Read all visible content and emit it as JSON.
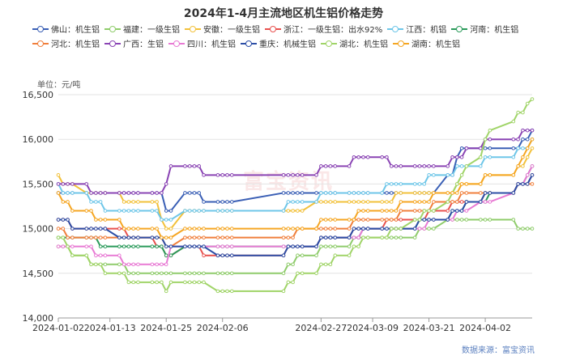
{
  "title": "2024年1-4月主流地区机生铝价格走势",
  "unit": "单位：元/吨",
  "source": "数据来源：富宝资讯",
  "watermark": "富宝资讯",
  "chart_data": {
    "type": "line",
    "title": "2024年1-4月主流地区机生铝价格走势",
    "ylabel": "单位：元/吨",
    "ylim": [
      14000,
      16500
    ],
    "yticks": [
      14000,
      14500,
      15000,
      15500,
      16000,
      16500
    ],
    "ytick_labels": [
      "14,000",
      "14,500",
      "15,000",
      "15,500",
      "16,000",
      "16,500"
    ],
    "xlim": [
      "2024-01-02",
      "2024-04-12"
    ],
    "xticks": [
      "2024-01-02",
      "2024-01-13",
      "2024-01-25",
      "2024-02-06",
      "2024-02-27",
      "2024-03-09",
      "2024-03-21",
      "2024-04-02"
    ],
    "grid": "horizontal",
    "legend_position": "top",
    "x": [
      "2024-01-02",
      "2024-01-03",
      "2024-01-04",
      "2024-01-05",
      "2024-01-08",
      "2024-01-09",
      "2024-01-10",
      "2024-01-11",
      "2024-01-12",
      "2024-01-15",
      "2024-01-16",
      "2024-01-17",
      "2024-01-18",
      "2024-01-19",
      "2024-01-22",
      "2024-01-23",
      "2024-01-24",
      "2024-01-25",
      "2024-01-26",
      "2024-01-29",
      "2024-01-30",
      "2024-01-31",
      "2024-02-01",
      "2024-02-02",
      "2024-02-05",
      "2024-02-06",
      "2024-02-07",
      "2024-02-08",
      "2024-02-19",
      "2024-02-20",
      "2024-02-21",
      "2024-02-22",
      "2024-02-23",
      "2024-02-26",
      "2024-02-27",
      "2024-02-28",
      "2024-02-29",
      "2024-03-01",
      "2024-03-04",
      "2024-03-05",
      "2024-03-06",
      "2024-03-07",
      "2024-03-08",
      "2024-03-11",
      "2024-03-12",
      "2024-03-13",
      "2024-03-14",
      "2024-03-15",
      "2024-03-18",
      "2024-03-19",
      "2024-03-20",
      "2024-03-21",
      "2024-03-22",
      "2024-03-25",
      "2024-03-26",
      "2024-03-27",
      "2024-03-28",
      "2024-03-29",
      "2024-04-01",
      "2024-04-02",
      "2024-04-03",
      "2024-04-08",
      "2024-04-09",
      "2024-04-10",
      "2024-04-11",
      "2024-04-12"
    ],
    "series": [
      {
        "name": "佛山：机生铝",
        "color": "#3a5fb5",
        "values": [
          15400,
          15400,
          15400,
          15400,
          15400,
          15400,
          15400,
          15400,
          15400,
          15400,
          15400,
          15400,
          15400,
          15400,
          15400,
          15400,
          15400,
          15200,
          15200,
          15400,
          15400,
          15400,
          15400,
          15300,
          15300,
          15300,
          15300,
          15300,
          15400,
          15400,
          15400,
          15400,
          15400,
          15400,
          15400,
          15400,
          15400,
          15400,
          15400,
          15400,
          15400,
          15400,
          15400,
          15400,
          15400,
          15400,
          15400,
          15400,
          15400,
          15400,
          15400,
          15400,
          15400,
          15600,
          15600,
          15800,
          15900,
          15900,
          15900,
          15900,
          15900,
          15900,
          15900,
          16000,
          16000,
          16100
        ]
      },
      {
        "name": "福建：一级生铝",
        "color": "#8fcc6b",
        "values": [
          14800,
          14800,
          14800,
          14700,
          14700,
          14600,
          14600,
          14600,
          14600,
          14600,
          14600,
          14500,
          14500,
          14500,
          14500,
          14500,
          14500,
          14500,
          14500,
          14500,
          14500,
          14500,
          14500,
          14500,
          14500,
          14500,
          14500,
          14500,
          14500,
          14600,
          14600,
          14700,
          14700,
          14700,
          14800,
          14800,
          14800,
          14800,
          14800,
          14900,
          14900,
          14900,
          14900,
          14900,
          14900,
          14900,
          14900,
          14900,
          14900,
          15000,
          15000,
          15000,
          15000,
          15100,
          15100,
          15100,
          15100,
          15100,
          15100,
          15100,
          15100,
          15100,
          15000,
          15000,
          15000,
          15000
        ]
      },
      {
        "name": "安徽：一级生铝",
        "color": "#f2c13b",
        "values": [
          15600,
          15500,
          15500,
          15500,
          15400,
          15400,
          15400,
          15400,
          15400,
          15400,
          15300,
          15300,
          15300,
          15300,
          15300,
          15300,
          15100,
          15000,
          15000,
          15200,
          15200,
          15200,
          15200,
          15200,
          15200,
          15200,
          15200,
          15200,
          15200,
          15200,
          15200,
          15200,
          15200,
          15300,
          15300,
          15300,
          15300,
          15300,
          15300,
          15300,
          15300,
          15300,
          15300,
          15300,
          15300,
          15300,
          15400,
          15400,
          15400,
          15400,
          15400,
          15400,
          15400,
          15400,
          15400,
          15500,
          15500,
          15500,
          15500,
          15600,
          15600,
          15600,
          15700,
          15700,
          15800,
          15900
        ]
      },
      {
        "name": "浙江：一级生铝：出水92%",
        "color": "#e8524f",
        "values": [
          15100,
          15100,
          15100,
          15000,
          15000,
          15000,
          15000,
          15000,
          15000,
          15000,
          15000,
          14900,
          14900,
          14900,
          14900,
          14800,
          14800,
          14700,
          14700,
          14800,
          14800,
          14800,
          14800,
          14700,
          14700,
          14700,
          14700,
          14700,
          14700,
          14800,
          14800,
          14800,
          14800,
          14800,
          14900,
          14900,
          14900,
          14900,
          14900,
          15000,
          15000,
          15000,
          15000,
          15000,
          15100,
          15100,
          15100,
          15100,
          15100,
          15100,
          15100,
          15200,
          15200,
          15200,
          15300,
          15300,
          15300,
          15300,
          15300,
          15400,
          15400,
          15400,
          15500,
          15500,
          15500,
          15600
        ]
      },
      {
        "name": "江西：机铝",
        "color": "#6ec6e8",
        "values": [
          15500,
          15400,
          15400,
          15400,
          15400,
          15300,
          15300,
          15300,
          15200,
          15200,
          15200,
          15200,
          15200,
          15200,
          15200,
          15200,
          15100,
          15100,
          15100,
          15200,
          15200,
          15200,
          15200,
          15200,
          15200,
          15200,
          15200,
          15200,
          15200,
          15300,
          15300,
          15300,
          15300,
          15300,
          15400,
          15400,
          15400,
          15400,
          15400,
          15400,
          15400,
          15400,
          15400,
          15400,
          15500,
          15500,
          15500,
          15500,
          15500,
          15500,
          15500,
          15600,
          15600,
          15600,
          15600,
          15700,
          15700,
          15700,
          15700,
          15800,
          15800,
          15800,
          15900,
          15900,
          15900,
          16000
        ]
      },
      {
        "name": "河南：机生铝",
        "color": "#2a9a5a",
        "values": [
          14900,
          14900,
          14900,
          14900,
          14900,
          14900,
          14900,
          14800,
          14800,
          14800,
          14800,
          14800,
          14800,
          14800,
          14800,
          14800,
          14800,
          14700,
          14700,
          14800,
          14800,
          14800,
          14800,
          14800,
          14800,
          14800,
          14800,
          14800,
          14800,
          14800,
          14800,
          14800,
          14800,
          14800,
          14900,
          14900,
          14900,
          14900,
          14900,
          14900,
          14900,
          15000,
          15000,
          15000,
          15000,
          15000,
          15000,
          15000,
          15000,
          15100,
          15100,
          15100,
          15100,
          15100,
          15200,
          15200,
          15200,
          15300,
          15300,
          15300,
          15400,
          15400,
          15500,
          15500,
          15600,
          15700
        ]
      },
      {
        "name": "河北：机生铝",
        "color": "#f07f3c",
        "values": [
          15000,
          15000,
          14900,
          14900,
          14900,
          14900,
          14900,
          14900,
          14900,
          14900,
          14900,
          14900,
          14900,
          14900,
          14900,
          14900,
          14900,
          14800,
          14800,
          14900,
          14900,
          14900,
          14900,
          14900,
          14900,
          14900,
          14900,
          14900,
          14900,
          14900,
          14900,
          15000,
          15000,
          15000,
          15000,
          15000,
          15000,
          15000,
          15000,
          15100,
          15100,
          15100,
          15100,
          15100,
          15100,
          15100,
          15100,
          15200,
          15200,
          15200,
          15200,
          15200,
          15300,
          15300,
          15300,
          15300,
          15400,
          15400,
          15400,
          15400,
          15400,
          15400,
          15500,
          15500,
          15500,
          15500
        ]
      },
      {
        "name": "广西：生铝",
        "color": "#8a44b4",
        "values": [
          15500,
          15500,
          15500,
          15500,
          15500,
          15400,
          15400,
          15400,
          15400,
          15400,
          15400,
          15400,
          15400,
          15400,
          15400,
          15400,
          15400,
          15500,
          15700,
          15700,
          15700,
          15700,
          15700,
          15600,
          15600,
          15600,
          15600,
          15600,
          15600,
          15600,
          15600,
          15600,
          15600,
          15600,
          15700,
          15700,
          15700,
          15700,
          15700,
          15800,
          15800,
          15800,
          15800,
          15800,
          15800,
          15700,
          15700,
          15700,
          15700,
          15700,
          15700,
          15700,
          15700,
          15700,
          15800,
          15800,
          15800,
          15900,
          15900,
          16000,
          16000,
          16000,
          16000,
          16100,
          16100,
          16100
        ]
      },
      {
        "name": "四川：机生铝",
        "color": "#e87ad4",
        "values": [
          14800,
          14800,
          14800,
          14800,
          14800,
          14800,
          14700,
          14700,
          14700,
          14700,
          14600,
          14600,
          14600,
          14600,
          14600,
          14600,
          14600,
          14600,
          14800,
          14800,
          14800,
          14800,
          14800,
          14800,
          14800,
          14800,
          14800,
          14800,
          14800,
          14800,
          14800,
          14800,
          14800,
          14800,
          14900,
          14900,
          14900,
          14900,
          14900,
          14900,
          14900,
          15000,
          15000,
          15000,
          15000,
          15000,
          15000,
          15000,
          15000,
          15000,
          15000,
          15100,
          15100,
          15100,
          15100,
          15200,
          15200,
          15200,
          15300,
          15300,
          15300,
          15400,
          15500,
          15500,
          15600,
          15700
        ]
      },
      {
        "name": "重庆：机械生铝",
        "color": "#2c4ea6",
        "values": [
          15100,
          15100,
          15100,
          15000,
          15000,
          15000,
          15000,
          15000,
          15000,
          14900,
          14900,
          14900,
          14900,
          14900,
          14900,
          14900,
          14900,
          14800,
          14800,
          14800,
          14800,
          14800,
          14800,
          14800,
          14700,
          14700,
          14700,
          14700,
          14700,
          14800,
          14800,
          14800,
          14800,
          14800,
          14900,
          14900,
          14900,
          14900,
          14900,
          15000,
          15000,
          15000,
          15000,
          15000,
          15000,
          15000,
          15000,
          15000,
          15000,
          15100,
          15100,
          15100,
          15100,
          15100,
          15200,
          15200,
          15200,
          15300,
          15300,
          15400,
          15400,
          15400,
          15500,
          15500,
          15500,
          15600
        ]
      },
      {
        "name": "湖北：机生铝",
        "color": "#a0d468",
        "values": [
          14900,
          14900,
          14800,
          14700,
          14700,
          14600,
          14600,
          14600,
          14500,
          14500,
          14500,
          14400,
          14400,
          14400,
          14400,
          14400,
          14400,
          14300,
          14400,
          14400,
          14400,
          14400,
          14400,
          14400,
          14300,
          14300,
          14300,
          14300,
          14300,
          14400,
          14400,
          14500,
          14500,
          14500,
          14600,
          14600,
          14600,
          14700,
          14700,
          14800,
          14800,
          14900,
          14900,
          14900,
          14900,
          15000,
          15000,
          15000,
          15100,
          15100,
          15200,
          15200,
          15200,
          15300,
          15400,
          15500,
          15600,
          15700,
          15800,
          16000,
          16100,
          16200,
          16300,
          16300,
          16400,
          16450
        ]
      },
      {
        "name": "湖南：机生铝",
        "color": "#f5a623",
        "values": [
          15400,
          15300,
          15300,
          15200,
          15200,
          15200,
          15100,
          15100,
          15100,
          15100,
          15000,
          15000,
          15000,
          15000,
          15000,
          15000,
          14900,
          14900,
          14900,
          15000,
          15000,
          15000,
          15000,
          15000,
          15000,
          15000,
          15000,
          15000,
          15000,
          15000,
          15000,
          15000,
          15000,
          15000,
          15100,
          15100,
          15100,
          15100,
          15100,
          15100,
          15200,
          15200,
          15200,
          15200,
          15200,
          15200,
          15200,
          15300,
          15300,
          15300,
          15300,
          15300,
          15400,
          15400,
          15400,
          15400,
          15500,
          15500,
          15500,
          15600,
          15600,
          15600,
          15700,
          15800,
          15900,
          16000
        ]
      }
    ]
  }
}
